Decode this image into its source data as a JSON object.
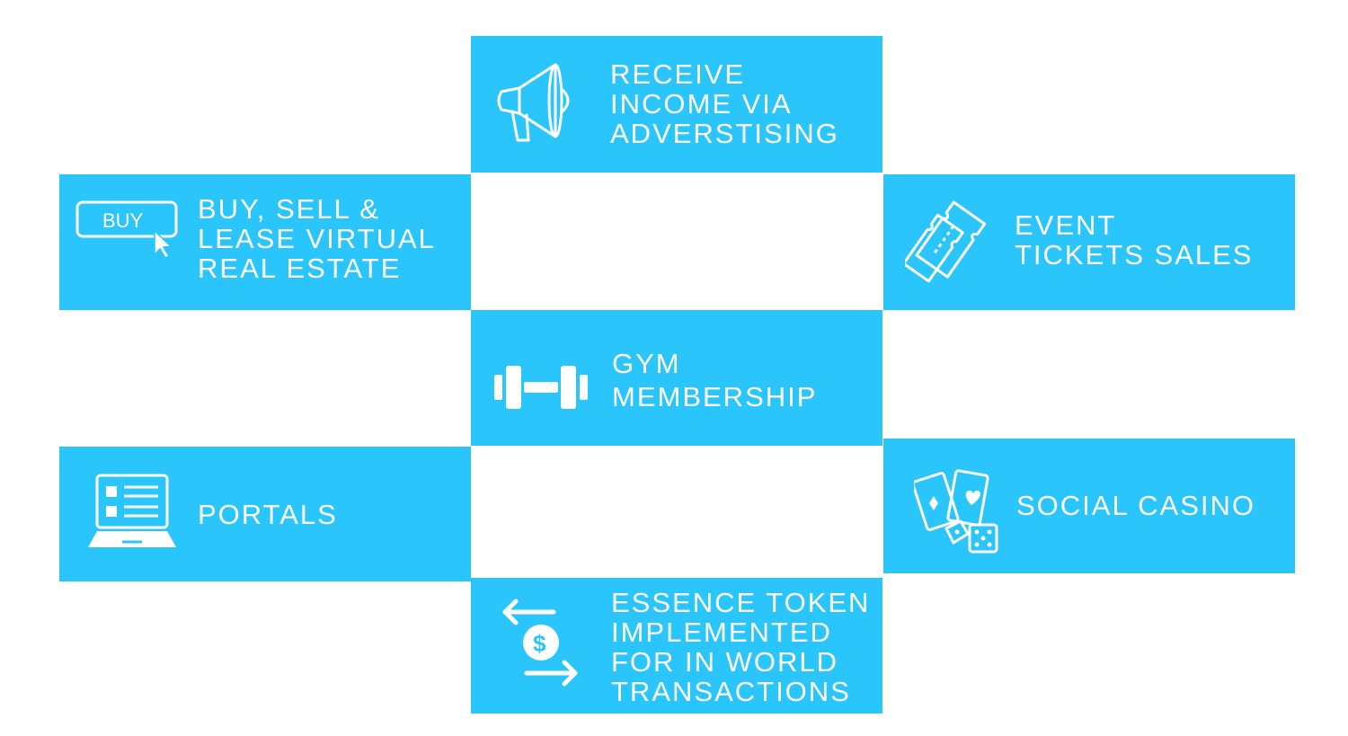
{
  "tiles": {
    "advertising": {
      "label": "RECEIVE\nINCOME VIA\nADVERSTISING",
      "icon": "megaphone-icon"
    },
    "real_estate": {
      "label": "BUY, SELL &\nLEASE VIRTUAL\nREAL ESTATE",
      "icon": "buy-button-cursor-icon",
      "icon_text": "BUY"
    },
    "event_tickets": {
      "label": "EVENT\nTICKETS SALES",
      "icon": "tickets-icon"
    },
    "gym": {
      "label": "GYM\nMEMBERSHIP",
      "icon": "dumbbell-icon"
    },
    "portals": {
      "label": "PORTALS",
      "icon": "laptop-list-icon"
    },
    "social_casino": {
      "label": "SOCIAL CASINO",
      "icon": "cards-dice-icon"
    },
    "essence_token": {
      "label": "ESSENCE TOKEN\nIMPLEMENTED\nFOR IN WORLD\nTRANSACTIONS",
      "icon": "dollar-exchange-icon"
    }
  },
  "colors": {
    "tile": "#29c5fb",
    "text": "#ffffff",
    "background": "#ffffff"
  }
}
